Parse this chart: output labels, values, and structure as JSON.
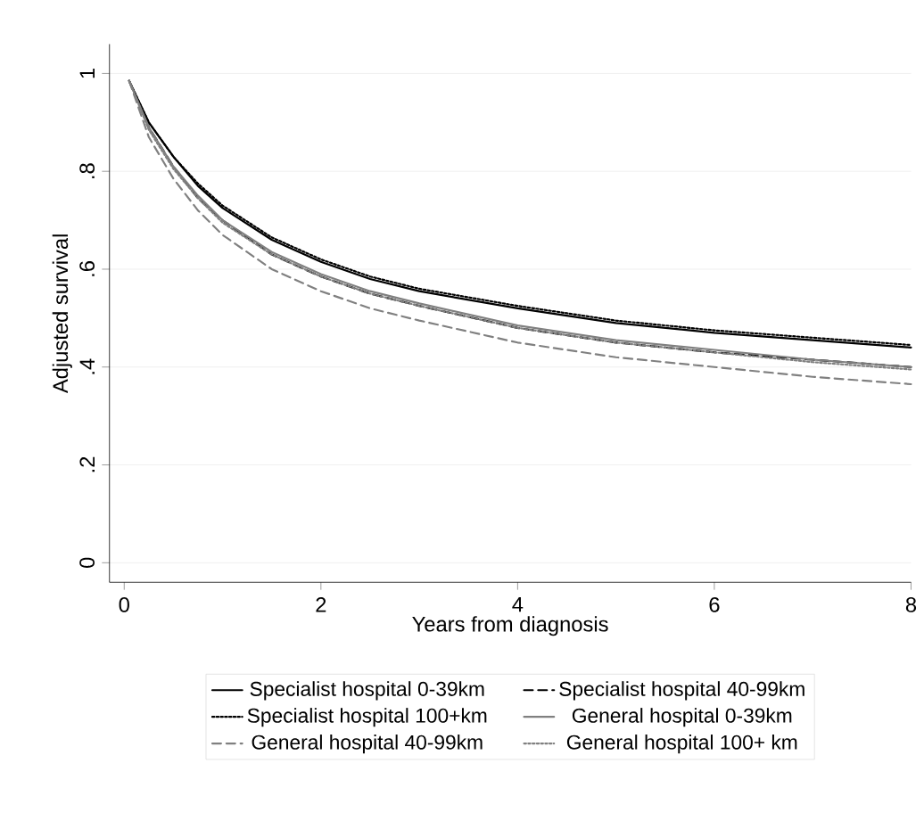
{
  "chart_data": {
    "type": "line",
    "xlabel": "Years from diagnosis",
    "ylabel": "Adjusted survival",
    "xlim": [
      -0.15,
      8
    ],
    "ylim": [
      -0.04,
      1.06
    ],
    "xticks": [
      0,
      2,
      4,
      6,
      8
    ],
    "yticks": [
      {
        "value": 0,
        "label": "0"
      },
      {
        "value": 0.2,
        "label": ".2"
      },
      {
        "value": 0.4,
        "label": ".4"
      },
      {
        "value": 0.6,
        "label": ".6"
      },
      {
        "value": 0.8,
        "label": ".8"
      },
      {
        "value": 1,
        "label": "1"
      }
    ],
    "grid": "y",
    "legend": "bottom",
    "x": [
      0.05,
      0.25,
      0.5,
      0.75,
      1,
      1.5,
      2,
      2.5,
      3,
      4,
      5,
      6,
      7,
      8
    ],
    "series": [
      {
        "name": "Specialist hospital 0-39km",
        "color": "#000000",
        "line_style": "solid",
        "values": [
          0.985,
          0.9,
          0.83,
          0.77,
          0.725,
          0.66,
          0.615,
          0.58,
          0.555,
          0.52,
          0.49,
          0.47,
          0.455,
          0.44
        ]
      },
      {
        "name": "Specialist hospital 40-99km",
        "color": "#000000",
        "line_style": "dashed",
        "values": [
          0.985,
          0.89,
          0.81,
          0.745,
          0.7,
          0.63,
          0.585,
          0.55,
          0.525,
          0.48,
          0.45,
          0.43,
          0.415,
          0.4
        ]
      },
      {
        "name": "Specialist hospital 100+km",
        "color": "#000000",
        "line_style": "dotted",
        "values": [
          0.985,
          0.9,
          0.83,
          0.775,
          0.73,
          0.665,
          0.62,
          0.585,
          0.56,
          0.525,
          0.495,
          0.475,
          0.46,
          0.445
        ]
      },
      {
        "name": "General hospital 0-39km",
        "color": "#808080",
        "line_style": "solid",
        "values": [
          0.985,
          0.89,
          0.81,
          0.75,
          0.7,
          0.635,
          0.59,
          0.555,
          0.53,
          0.485,
          0.455,
          0.435,
          0.415,
          0.4
        ]
      },
      {
        "name": "General hospital 40-99km",
        "color": "#808080",
        "line_style": "dashed",
        "values": [
          0.985,
          0.87,
          0.785,
          0.72,
          0.67,
          0.6,
          0.555,
          0.52,
          0.495,
          0.45,
          0.42,
          0.4,
          0.38,
          0.365
        ]
      },
      {
        "name": "General hospital 100+ km",
        "color": "#808080",
        "line_style": "dotted",
        "values": [
          0.985,
          0.885,
          0.805,
          0.745,
          0.695,
          0.63,
          0.585,
          0.55,
          0.525,
          0.48,
          0.45,
          0.43,
          0.41,
          0.395
        ]
      }
    ]
  }
}
